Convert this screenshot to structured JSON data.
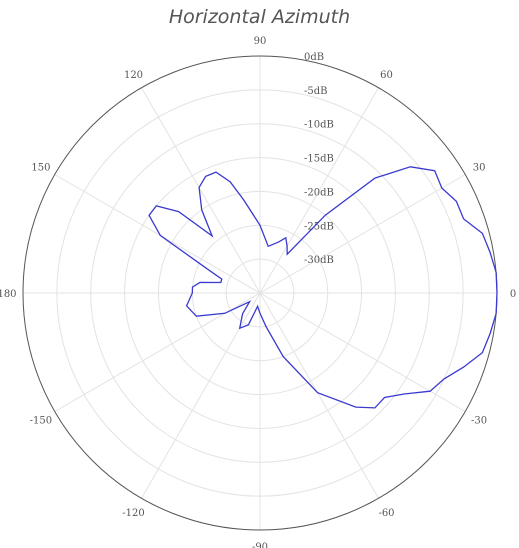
{
  "chart_data": {
    "type": "polar-line",
    "title": "Horizontal Azimuth",
    "angle_ticks": [
      {
        "angle": 90,
        "label": "90"
      },
      {
        "angle": 60,
        "label": "60"
      },
      {
        "angle": 30,
        "label": "30"
      },
      {
        "angle": 0,
        "label": "0"
      },
      {
        "angle": -30,
        "label": "-30"
      },
      {
        "angle": -60,
        "label": "-60"
      },
      {
        "angle": -90,
        "label": "-90"
      },
      {
        "angle": -120,
        "label": "-120"
      },
      {
        "angle": -150,
        "label": "-150"
      },
      {
        "angle": 180,
        "label": "180"
      },
      {
        "angle": 150,
        "label": "150"
      },
      {
        "angle": 120,
        "label": "120"
      }
    ],
    "radial_ticks": [
      {
        "value": 0,
        "label": "0dB"
      },
      {
        "value": -5,
        "label": "-5dB"
      },
      {
        "value": -10,
        "label": "-10dB"
      },
      {
        "value": -15,
        "label": "-15dB"
      },
      {
        "value": -20,
        "label": "-20dB"
      },
      {
        "value": -25,
        "label": "-25dB"
      },
      {
        "value": -30,
        "label": "-30dB"
      }
    ],
    "rlim": [
      -35,
      0
    ],
    "grid": true,
    "series_color": "#3a3ad0",
    "series": [
      {
        "theta": [
          -180,
          -170,
          -160,
          -150,
          -140,
          -130,
          -120,
          -110,
          -100,
          -90,
          -80,
          -70,
          -60,
          -50,
          -45,
          -40,
          -35,
          -30,
          -25,
          -20,
          -15,
          -10,
          -5,
          0,
          5,
          10,
          15,
          20,
          25,
          30,
          35,
          40,
          45,
          50,
          55,
          60,
          65,
          70,
          80,
          90,
          100,
          105,
          110,
          115,
          120,
          125,
          130,
          135,
          140,
          145,
          150,
          155,
          160,
          165,
          170,
          175,
          180
        ],
        "r": [
          -25,
          -24,
          -25,
          -29,
          -33,
          -31,
          -29,
          -30,
          -33,
          -32,
          -30,
          -25,
          -18,
          -13,
          -11,
          -11,
          -9,
          -6,
          -5,
          -3,
          -1,
          -0.5,
          0,
          0,
          0,
          -0.5,
          -1,
          -3,
          -3,
          -4,
          -3.5,
          -6,
          -11,
          -20,
          -28,
          -27,
          -26,
          -27,
          -28,
          -25,
          -21,
          -18,
          -16,
          -16,
          -17,
          -20,
          -24,
          -18,
          -15,
          -15,
          -18,
          -26,
          -29,
          -29,
          -26,
          -25,
          -25
        ]
      }
    ]
  }
}
